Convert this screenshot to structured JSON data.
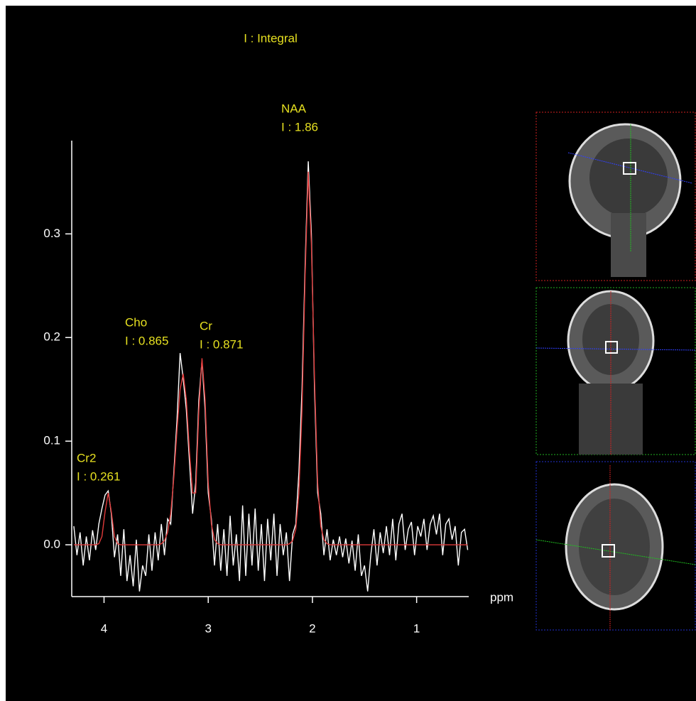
{
  "chart_data": {
    "type": "line",
    "title": "I : Integral",
    "x_label": "ppm",
    "xlim": [
      4.31,
      0.5
    ],
    "ylim": [
      -0.05,
      0.39
    ],
    "xticks": [
      4,
      3,
      2,
      1
    ],
    "yticks": [
      {
        "value": 0,
        "label": "0.0"
      },
      0.1,
      0.2,
      0.3
    ],
    "x": [
      4.29,
      4.26,
      4.23,
      4.2,
      4.17,
      4.14,
      4.11,
      4.08,
      4.05,
      4.02,
      3.99,
      3.96,
      3.93,
      3.9,
      3.87,
      3.84,
      3.81,
      3.78,
      3.75,
      3.72,
      3.69,
      3.66,
      3.63,
      3.6,
      3.57,
      3.54,
      3.51,
      3.48,
      3.45,
      3.42,
      3.39,
      3.36,
      3.33,
      3.3,
      3.27,
      3.24,
      3.21,
      3.18,
      3.15,
      3.12,
      3.09,
      3.06,
      3.03,
      3.0,
      2.97,
      2.94,
      2.91,
      2.88,
      2.85,
      2.82,
      2.79,
      2.76,
      2.73,
      2.7,
      2.67,
      2.64,
      2.61,
      2.58,
      2.55,
      2.52,
      2.49,
      2.46,
      2.43,
      2.4,
      2.37,
      2.34,
      2.31,
      2.28,
      2.25,
      2.22,
      2.19,
      2.16,
      2.13,
      2.1,
      2.07,
      2.04,
      2.01,
      1.98,
      1.95,
      1.92,
      1.89,
      1.86,
      1.83,
      1.8,
      1.77,
      1.74,
      1.71,
      1.68,
      1.65,
      1.62,
      1.59,
      1.56,
      1.53,
      1.5,
      1.47,
      1.44,
      1.41,
      1.38,
      1.35,
      1.32,
      1.29,
      1.26,
      1.23,
      1.2,
      1.17,
      1.14,
      1.11,
      1.08,
      1.05,
      1.02,
      0.99,
      0.96,
      0.93,
      0.9,
      0.87,
      0.84,
      0.81,
      0.78,
      0.75,
      0.72,
      0.69,
      0.66,
      0.63,
      0.6,
      0.57,
      0.54,
      0.51
    ],
    "series": [
      {
        "color": "#ffffff",
        "values": [
          0.018,
          -0.01,
          0.012,
          -0.02,
          0.008,
          -0.015,
          0.014,
          -0.005,
          0.02,
          0.035,
          0.048,
          0.052,
          0.03,
          -0.012,
          0.01,
          -0.03,
          0.015,
          -0.035,
          -0.01,
          -0.04,
          0.005,
          -0.045,
          -0.02,
          -0.03,
          0.01,
          -0.025,
          0.012,
          -0.015,
          0.02,
          -0.01,
          0.025,
          0.02,
          0.07,
          0.12,
          0.185,
          0.16,
          0.13,
          0.08,
          0.03,
          0.06,
          0.14,
          0.178,
          0.13,
          0.05,
          0.025,
          -0.02,
          0.02,
          -0.025,
          0.015,
          -0.03,
          0.028,
          -0.02,
          0.01,
          -0.035,
          0.038,
          -0.03,
          0.03,
          -0.02,
          0.035,
          -0.025,
          0.02,
          -0.035,
          0.025,
          -0.015,
          0.03,
          -0.03,
          0.02,
          -0.01,
          0.012,
          -0.035,
          0.01,
          0.02,
          0.07,
          0.15,
          0.27,
          0.37,
          0.3,
          0.15,
          0.05,
          0.03,
          -0.01,
          0.015,
          -0.015,
          0.005,
          -0.01,
          0.008,
          -0.012,
          0.006,
          -0.018,
          0.004,
          -0.025,
          0.01,
          -0.03,
          -0.02,
          -0.045,
          -0.01,
          0.015,
          -0.02,
          0.012,
          -0.008,
          0.018,
          -0.01,
          0.025,
          -0.015,
          0.02,
          0.03,
          -0.005,
          0.015,
          0.022,
          -0.01,
          0.018,
          0.008,
          0.025,
          -0.005,
          0.02,
          0.028,
          0.01,
          0.03,
          -0.01,
          0.02,
          0.025,
          0.005,
          0.018,
          -0.02,
          0.012,
          0.015,
          -0.005
        ]
      },
      {
        "color": "#e03a3a",
        "values": [
          0,
          0,
          0,
          0,
          0,
          0,
          0,
          0,
          0.001,
          0.008,
          0.032,
          0.05,
          0.032,
          0.008,
          0.001,
          0,
          0,
          0,
          0,
          0,
          0,
          0,
          0,
          0,
          0,
          0,
          0,
          0,
          0.001,
          0.004,
          0.012,
          0.03,
          0.065,
          0.11,
          0.15,
          0.165,
          0.14,
          0.09,
          0.05,
          0.05,
          0.13,
          0.18,
          0.14,
          0.06,
          0.02,
          0.005,
          0.001,
          0,
          0,
          0,
          0,
          0,
          0,
          0,
          0,
          0,
          0,
          0,
          0,
          0,
          0,
          0,
          0,
          0,
          0,
          0,
          0,
          0,
          0,
          0.001,
          0.004,
          0.015,
          0.05,
          0.13,
          0.26,
          0.36,
          0.29,
          0.16,
          0.06,
          0.018,
          0.005,
          0.001,
          0,
          0,
          0,
          0,
          0,
          0,
          0,
          0,
          0,
          0,
          0,
          0,
          0,
          0,
          0,
          0,
          0,
          0,
          0,
          0,
          0,
          0,
          0,
          0,
          0,
          0,
          0,
          0,
          0,
          0,
          0,
          0,
          0,
          0,
          0,
          0,
          0,
          0,
          0,
          0,
          0,
          0,
          0,
          0,
          0
        ]
      }
    ],
    "annotations": [
      {
        "lines": [
          "NAA",
          "I : 1.86"
        ]
      },
      {
        "lines": [
          "Cho",
          "I : 0.865"
        ]
      },
      {
        "lines": [
          "Cr",
          "I : 0.871"
        ]
      },
      {
        "lines": [
          "Cr2",
          "I : 0.261"
        ]
      }
    ]
  }
}
